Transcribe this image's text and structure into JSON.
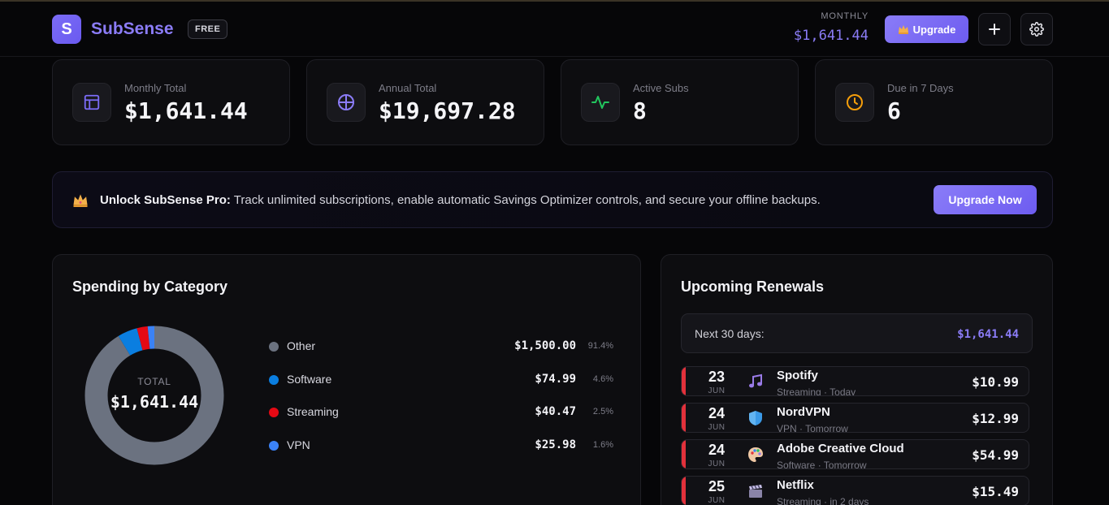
{
  "app": {
    "logo_letter": "S",
    "name": "SubSense",
    "plan_badge": "FREE"
  },
  "header": {
    "monthly_label": "MONTHLY",
    "monthly_value": "$1,641.44",
    "upgrade_label": "Upgrade",
    "add_icon": "plus-icon",
    "settings_icon": "gear-icon"
  },
  "stats": [
    {
      "label": "Monthly Total",
      "value": "$1,641.44",
      "icon": "calendar-icon",
      "color": "#7b6cf6"
    },
    {
      "label": "Annual Total",
      "value": "$19,697.28",
      "icon": "globe-icon",
      "color": "#8b7cf7"
    },
    {
      "label": "Active Subs",
      "value": "8",
      "icon": "activity-icon",
      "color": "#22c55e"
    },
    {
      "label": "Due in 7 Days",
      "value": "6",
      "icon": "clock-icon",
      "color": "#f59e0b"
    }
  ],
  "promo": {
    "title": "Unlock SubSense Pro:",
    "text": " Track unlimited subscriptions, enable automatic Savings Optimizer controls, and secure your offline backups.",
    "button": "Upgrade Now"
  },
  "spending": {
    "title": "Spending by Category",
    "total_label": "TOTAL",
    "total_value": "$1,641.44",
    "categories": [
      {
        "name": "Other",
        "amount": "$1,500.00",
        "pct": "91.4%",
        "value": 91.4,
        "color": "#6b7280"
      },
      {
        "name": "Software",
        "amount": "$74.99",
        "pct": "4.6%",
        "value": 4.6,
        "color": "#0a7ee0"
      },
      {
        "name": "Streaming",
        "amount": "$40.47",
        "pct": "2.5%",
        "value": 2.5,
        "color": "#e50914"
      },
      {
        "name": "VPN",
        "amount": "$25.98",
        "pct": "1.6%",
        "value": 1.6,
        "color": "#3b82f6"
      }
    ]
  },
  "renewals": {
    "title": "Upcoming Renewals",
    "next_label": "Next 30 days:",
    "next_value": "$1,641.44",
    "items": [
      {
        "day": "23",
        "month": "JUN",
        "name": "Spotify",
        "meta": "Streaming · Today",
        "price": "$10.99",
        "icon": "music-note-icon"
      },
      {
        "day": "24",
        "month": "JUN",
        "name": "NordVPN",
        "meta": "VPN · Tomorrow",
        "price": "$12.99",
        "icon": "shield-icon"
      },
      {
        "day": "24",
        "month": "JUN",
        "name": "Adobe Creative Cloud",
        "meta": "Software · Tomorrow",
        "price": "$54.99",
        "icon": "palette-icon"
      },
      {
        "day": "25",
        "month": "JUN",
        "name": "Netflix",
        "meta": "Streaming · in 2 days",
        "price": "$15.49",
        "icon": "clapperboard-icon"
      }
    ]
  }
}
